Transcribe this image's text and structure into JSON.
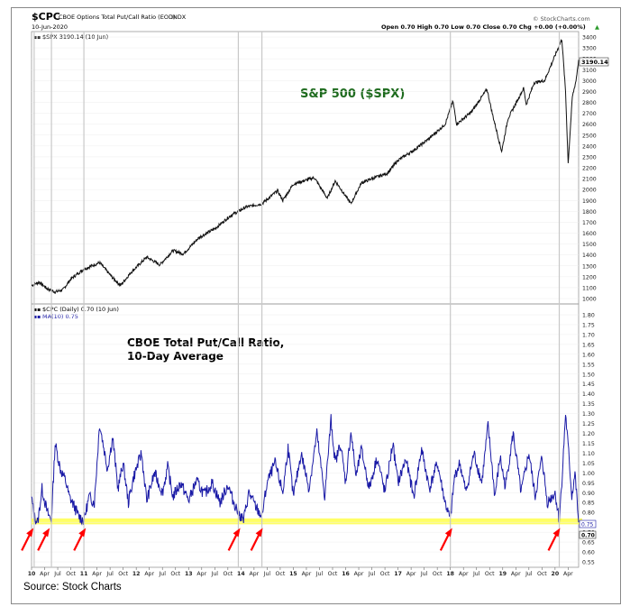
{
  "header": {
    "symbol": "$CPC",
    "name": "CBOE Options Total Put/Call Ratio (EOD)",
    "exchange": "INDX",
    "date": "10-Jun-2020",
    "ohlc": "Open 0.70  High 0.70  Low 0.70  Close 0.70  Chg +0.00 (+0.00%)",
    "ohlc_arrow": "▲",
    "watermark": "© StockCharts.com"
  },
  "upper_panel": {
    "legend": "$SPX 3190.14 (10 Jun)",
    "legend_marker": "▪▪",
    "annotation": "S&P 500 ($SPX)",
    "last_value_label": "3190.14"
  },
  "lower_panel": {
    "legend1": "$CPC (Daily) 0.70 (10 Jun)",
    "legend2": "MA(10) 0.75",
    "legend_marker": "▪▪",
    "annotation_line1": "CBOE Total Put/Call Ratio,",
    "annotation_line2": "10-Day Average",
    "ma_value_label": "0.75",
    "last_value_label": "0.70"
  },
  "source": "Source: Stock Charts",
  "colors": {
    "spx_line": "#111111",
    "ma_line": "#1a1aa6",
    "highlight_band": "#ffff66",
    "arrow": "#ff0000",
    "annotation_green": "#1e6b1e",
    "vertical_lines": "#c8c8c8"
  },
  "chart_data": [
    {
      "type": "line",
      "name": "S&P 500 ($SPX)",
      "ylim": [
        1000,
        3400
      ],
      "yticks": [
        1000,
        1100,
        1200,
        1300,
        1400,
        1500,
        1600,
        1700,
        1800,
        1900,
        2000,
        2100,
        2200,
        2300,
        2400,
        2500,
        2600,
        2700,
        2800,
        2900,
        3000,
        3100,
        3200,
        3300,
        3400
      ],
      "x_range": [
        2010.0,
        2020.45
      ],
      "x": [
        2010.0,
        2010.15,
        2010.3,
        2010.45,
        2010.6,
        2010.75,
        2011.0,
        2011.3,
        2011.55,
        2011.7,
        2011.9,
        2012.2,
        2012.45,
        2012.7,
        2012.9,
        2013.2,
        2013.5,
        2013.8,
        2014.1,
        2014.4,
        2014.7,
        2014.8,
        2015.0,
        2015.4,
        2015.65,
        2015.8,
        2016.1,
        2016.3,
        2016.5,
        2016.8,
        2017.0,
        2017.3,
        2017.6,
        2017.9,
        2018.05,
        2018.12,
        2018.4,
        2018.7,
        2018.8,
        2018.98,
        2019.1,
        2019.4,
        2019.45,
        2019.6,
        2019.8,
        2020.0,
        2020.13,
        2020.2,
        2020.25,
        2020.33,
        2020.4,
        2020.45
      ],
      "y": [
        1120,
        1150,
        1090,
        1060,
        1080,
        1180,
        1270,
        1330,
        1190,
        1120,
        1240,
        1380,
        1310,
        1440,
        1410,
        1560,
        1640,
        1760,
        1840,
        1870,
        1990,
        1900,
        2050,
        2110,
        1920,
        2080,
        1870,
        2060,
        2100,
        2150,
        2270,
        2360,
        2470,
        2600,
        2810,
        2600,
        2710,
        2920,
        2700,
        2350,
        2650,
        2930,
        2780,
        2980,
        3000,
        3230,
        3380,
        2900,
        2240,
        2850,
        3000,
        3190
      ]
    },
    {
      "type": "line",
      "name": "$CPC MA(10)",
      "ylim": [
        0.55,
        1.8
      ],
      "yticks": [
        0.55,
        0.6,
        0.65,
        0.7,
        0.75,
        0.8,
        0.85,
        0.9,
        0.95,
        1.0,
        1.05,
        1.1,
        1.15,
        1.2,
        1.25,
        1.3,
        1.35,
        1.4,
        1.45,
        1.5,
        1.55,
        1.6,
        1.65,
        1.7,
        1.75,
        1.8
      ],
      "x_range": [
        2010.0,
        2020.45
      ],
      "highlight_band": [
        0.74,
        0.77
      ],
      "x": [
        2010.0,
        2010.05,
        2010.12,
        2010.2,
        2010.3,
        2010.38,
        2010.45,
        2010.55,
        2010.65,
        2010.72,
        2010.8,
        2010.9,
        2011.0,
        2011.1,
        2011.2,
        2011.3,
        2011.45,
        2011.55,
        2011.65,
        2011.75,
        2011.85,
        2011.95,
        2012.1,
        2012.2,
        2012.35,
        2012.5,
        2012.6,
        2012.7,
        2012.85,
        2013.0,
        2013.15,
        2013.3,
        2013.45,
        2013.6,
        2013.75,
        2013.85,
        2013.95,
        2014.05,
        2014.15,
        2014.3,
        2014.4,
        2014.5,
        2014.65,
        2014.8,
        2014.9,
        2015.0,
        2015.15,
        2015.3,
        2015.45,
        2015.6,
        2015.72,
        2015.8,
        2015.9,
        2016.0,
        2016.1,
        2016.2,
        2016.3,
        2016.45,
        2016.6,
        2016.75,
        2016.9,
        2017.0,
        2017.15,
        2017.3,
        2017.45,
        2017.6,
        2017.75,
        2017.9,
        2018.0,
        2018.08,
        2018.18,
        2018.3,
        2018.45,
        2018.6,
        2018.72,
        2018.85,
        2018.95,
        2019.05,
        2019.2,
        2019.35,
        2019.5,
        2019.62,
        2019.75,
        2019.85,
        2020.0,
        2020.08,
        2020.14,
        2020.2,
        2020.26,
        2020.32,
        2020.38,
        2020.45
      ],
      "y": [
        0.88,
        0.78,
        0.75,
        0.92,
        0.8,
        0.76,
        1.15,
        1.02,
        0.96,
        0.88,
        0.84,
        0.78,
        0.76,
        0.88,
        0.85,
        1.25,
        1.02,
        1.18,
        0.92,
        1.05,
        0.85,
        0.98,
        1.1,
        0.86,
        1.0,
        0.9,
        1.03,
        0.88,
        0.95,
        0.86,
        0.96,
        0.89,
        0.95,
        0.85,
        0.94,
        0.86,
        0.8,
        0.76,
        0.9,
        0.82,
        0.78,
        0.95,
        1.05,
        0.9,
        1.13,
        0.88,
        1.1,
        0.92,
        1.2,
        0.88,
        1.27,
        1.05,
        1.15,
        0.95,
        1.21,
        0.98,
        1.12,
        0.92,
        1.08,
        0.9,
        1.15,
        0.95,
        1.07,
        0.88,
        1.12,
        0.92,
        1.05,
        0.85,
        0.76,
        0.98,
        1.05,
        0.9,
        1.1,
        0.95,
        1.24,
        0.88,
        1.08,
        0.93,
        1.2,
        0.9,
        1.1,
        0.88,
        1.08,
        0.85,
        0.9,
        0.76,
        1.0,
        1.3,
        1.1,
        0.88,
        1.0,
        0.75
      ]
    }
  ],
  "x_axis": {
    "ticks": [
      {
        "t": 2010.0,
        "label": "10",
        "bold": true
      },
      {
        "t": 2010.25,
        "label": "Apr"
      },
      {
        "t": 2010.5,
        "label": "Jul"
      },
      {
        "t": 2010.75,
        "label": "Oct"
      },
      {
        "t": 2011.0,
        "label": "11",
        "bold": true
      },
      {
        "t": 2011.25,
        "label": "Apr"
      },
      {
        "t": 2011.5,
        "label": "Jul"
      },
      {
        "t": 2011.75,
        "label": "Oct"
      },
      {
        "t": 2012.0,
        "label": "12",
        "bold": true
      },
      {
        "t": 2012.25,
        "label": "Apr"
      },
      {
        "t": 2012.5,
        "label": "Jul"
      },
      {
        "t": 2012.75,
        "label": "Oct"
      },
      {
        "t": 2013.0,
        "label": "13",
        "bold": true
      },
      {
        "t": 2013.25,
        "label": "Apr"
      },
      {
        "t": 2013.5,
        "label": "Jul"
      },
      {
        "t": 2013.75,
        "label": "Oct"
      },
      {
        "t": 2014.0,
        "label": "14",
        "bold": true
      },
      {
        "t": 2014.25,
        "label": "Apr"
      },
      {
        "t": 2014.5,
        "label": "Jul"
      },
      {
        "t": 2014.75,
        "label": "Oct"
      },
      {
        "t": 2015.0,
        "label": "15",
        "bold": true
      },
      {
        "t": 2015.25,
        "label": "Apr"
      },
      {
        "t": 2015.5,
        "label": "Jul"
      },
      {
        "t": 2015.75,
        "label": "Oct"
      },
      {
        "t": 2016.0,
        "label": "16",
        "bold": true
      },
      {
        "t": 2016.25,
        "label": "Apr"
      },
      {
        "t": 2016.5,
        "label": "Jul"
      },
      {
        "t": 2016.75,
        "label": "Oct"
      },
      {
        "t": 2017.0,
        "label": "17",
        "bold": true
      },
      {
        "t": 2017.25,
        "label": "Apr"
      },
      {
        "t": 2017.5,
        "label": "Jul"
      },
      {
        "t": 2017.75,
        "label": "Oct"
      },
      {
        "t": 2018.0,
        "label": "18",
        "bold": true
      },
      {
        "t": 2018.25,
        "label": "Apr"
      },
      {
        "t": 2018.5,
        "label": "Jul"
      },
      {
        "t": 2018.75,
        "label": "Oct"
      },
      {
        "t": 2019.0,
        "label": "19",
        "bold": true
      },
      {
        "t": 2019.25,
        "label": "Apr"
      },
      {
        "t": 2019.5,
        "label": "Jul"
      },
      {
        "t": 2019.75,
        "label": "Oct"
      },
      {
        "t": 2020.0,
        "label": "20",
        "bold": true
      },
      {
        "t": 2020.25,
        "label": "Apr"
      }
    ],
    "vertical_lines": [
      2010.05,
      2010.38,
      2011.0,
      2013.95,
      2014.4,
      2018.0,
      2020.08
    ]
  },
  "arrows": [
    2010.02,
    2010.33,
    2011.02,
    2013.97,
    2014.4,
    2018.02,
    2020.08
  ]
}
